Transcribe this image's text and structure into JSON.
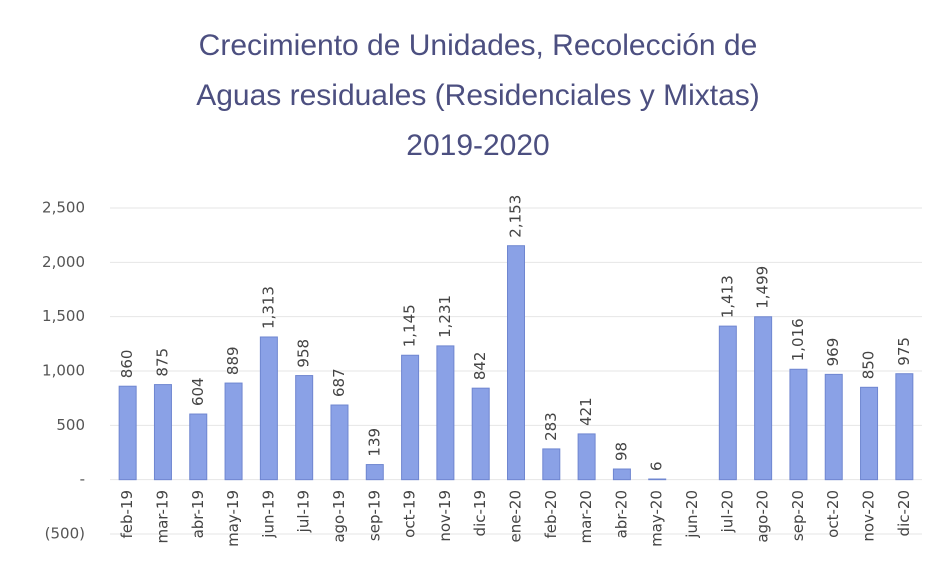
{
  "chart_data": {
    "type": "bar",
    "title": [
      "Crecimiento de Unidades, Recolección de",
      "Aguas residuales (Residenciales y Mixtas)",
      "2019-2020"
    ],
    "categories": [
      "feb-19",
      "mar-19",
      "abr-19",
      "may-19",
      "jun-19",
      "jul-19",
      "ago-19",
      "sep-19",
      "oct-19",
      "nov-19",
      "dic-19",
      "ene-20",
      "feb-20",
      "mar-20",
      "abr-20",
      "may-20",
      "jun-20",
      "jul-20",
      "ago-20",
      "sep-20",
      "oct-20",
      "nov-20",
      "dic-20"
    ],
    "values": [
      860,
      875,
      604,
      889,
      1313,
      958,
      687,
      139,
      1145,
      1231,
      842,
      2153,
      283,
      421,
      98,
      6,
      null,
      1413,
      1499,
      1016,
      969,
      850,
      975
    ],
    "value_labels": [
      "860",
      "875",
      "604",
      "889",
      "1,313",
      "958",
      "687",
      "139",
      "1,145",
      "1,231",
      "842",
      "2,153",
      "283",
      "421",
      "98",
      "6",
      null,
      "1,413",
      "1,499",
      "1,016",
      "969",
      "850",
      "975"
    ],
    "color": "#8aa1e6",
    "ylim": [
      -500,
      2500
    ],
    "yticks": [
      {
        "value": -500,
        "label": "(500)"
      },
      {
        "value": 0,
        "label": "-"
      },
      500,
      {
        "value": 1000,
        "label": "1,000"
      },
      {
        "value": 1500,
        "label": "1,500"
      },
      {
        "value": 2000,
        "label": "2,000"
      },
      {
        "value": 2500,
        "label": "2,500"
      }
    ],
    "grid": true
  }
}
